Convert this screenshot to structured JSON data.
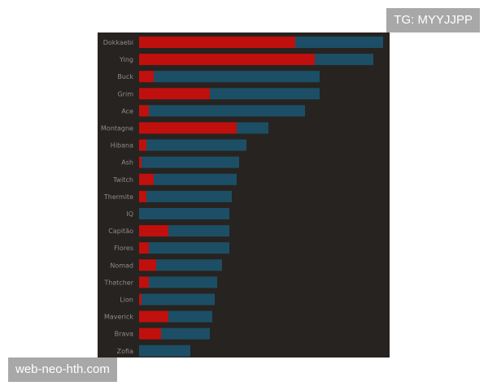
{
  "overlays": {
    "top_right_text": "TG: MYYJJPP",
    "bottom_left_text": "web-neo-hth.com"
  },
  "colors": {
    "background": "#272320",
    "series_red": "#c0100e",
    "series_blue": "#1c4f65",
    "label": "#8c8c8c"
  },
  "chart_data": {
    "type": "bar",
    "orientation": "horizontal",
    "stacked": true,
    "title": "",
    "xlabel": "",
    "ylabel": "",
    "xlim": [
      0,
      100
    ],
    "grid": false,
    "legend": "none",
    "categories": [
      "Dokkaebi",
      "Ying",
      "Buck",
      "Grim",
      "Ace",
      "Montagne",
      "Hibana",
      "Ash",
      "Twitch",
      "Thermite",
      "IQ",
      "Capitão",
      "Flores",
      "Nomad",
      "Thatcher",
      "Lion",
      "Maverick",
      "Brava",
      "Zofia"
    ],
    "series": [
      {
        "color": "#c0100e",
        "values": [
          64,
          72,
          6,
          29,
          4,
          40,
          3,
          1,
          6,
          3,
          0,
          12,
          4,
          7,
          4,
          1,
          12,
          9,
          0
        ]
      },
      {
        "color": "#1c4f65",
        "values": [
          36,
          24,
          68,
          45,
          64,
          13,
          41,
          40,
          34,
          35,
          37,
          25,
          33,
          27,
          28,
          30,
          18,
          20,
          21
        ]
      }
    ]
  }
}
